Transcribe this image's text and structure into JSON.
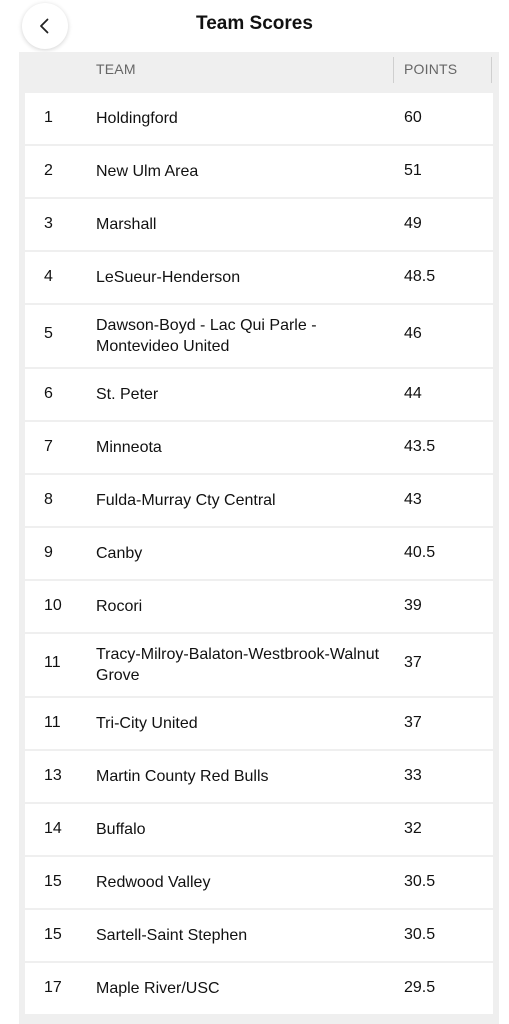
{
  "header": {
    "title": "Team Scores",
    "back_icon": "chevron-left-icon"
  },
  "table": {
    "columns": {
      "team": "TEAM",
      "points": "POINTS"
    },
    "rows": [
      {
        "rank": "1",
        "team": "Holdingford",
        "points": "60"
      },
      {
        "rank": "2",
        "team": "New Ulm Area",
        "points": "51"
      },
      {
        "rank": "3",
        "team": "Marshall",
        "points": "49"
      },
      {
        "rank": "4",
        "team": "LeSueur-Henderson",
        "points": "48.5"
      },
      {
        "rank": "5",
        "team": "Dawson-Boyd - Lac Qui Parle - Montevideo United",
        "points": "46"
      },
      {
        "rank": "6",
        "team": "St. Peter",
        "points": "44"
      },
      {
        "rank": "7",
        "team": "Minneota",
        "points": "43.5"
      },
      {
        "rank": "8",
        "team": "Fulda-Murray Cty Central",
        "points": "43"
      },
      {
        "rank": "9",
        "team": "Canby",
        "points": "40.5"
      },
      {
        "rank": "10",
        "team": "Rocori",
        "points": "39"
      },
      {
        "rank": "11",
        "team": "Tracy-Milroy-Balaton-Westbrook-Walnut Grove",
        "points": "37"
      },
      {
        "rank": "11",
        "team": "Tri-City United",
        "points": "37"
      },
      {
        "rank": "13",
        "team": "Martin County Red Bulls",
        "points": "33"
      },
      {
        "rank": "14",
        "team": "Buffalo",
        "points": "32"
      },
      {
        "rank": "15",
        "team": "Redwood Valley",
        "points": "30.5"
      },
      {
        "rank": "15",
        "team": "Sartell-Saint Stephen",
        "points": "30.5"
      },
      {
        "rank": "17",
        "team": "Maple River/USC",
        "points": "29.5"
      }
    ]
  }
}
